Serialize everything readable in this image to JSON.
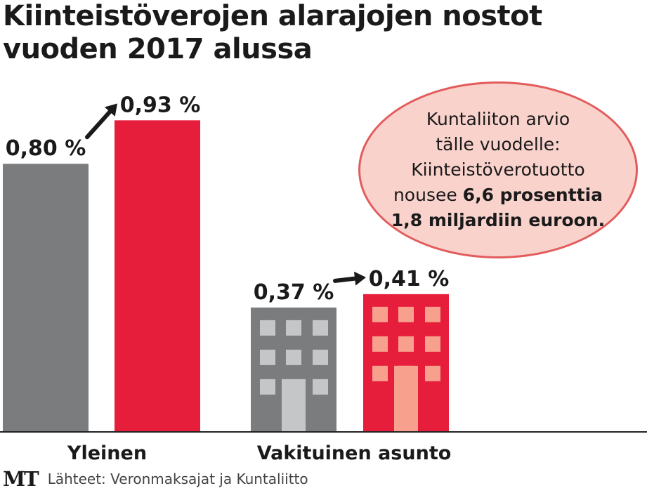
{
  "title_line1": "Kiinteistöverojen alarajojen nostot",
  "title_line2": "vuoden 2017 alussa",
  "colors": {
    "old": "#7b7c7e",
    "new": "#e61e3c",
    "window_old": "#c5c6c8",
    "window_new": "#f7a08e",
    "callout_fill": "#f9d2cc",
    "callout_border": "#e35c5c"
  },
  "chart_data": {
    "type": "bar",
    "title": "Kiinteistöverojen alarajojen nostot vuoden 2017 alussa",
    "categories": [
      "Yleinen",
      "Vakituinen asunto"
    ],
    "series": [
      {
        "name": "before",
        "values": [
          0.8,
          0.37
        ]
      },
      {
        "name": "after",
        "values": [
          0.93,
          0.41
        ]
      }
    ],
    "value_labels": [
      [
        "0,80 %",
        "0,93 %"
      ],
      [
        "0,37 %",
        "0,41 %"
      ]
    ],
    "unit": "%",
    "ylim": [
      0,
      1.0
    ]
  },
  "callout": {
    "line1": "Kuntaliiton arvio",
    "line2": "tälle vuodelle:",
    "line3": "Kiinteistöverotuotto",
    "line4_plain": "nousee ",
    "line4_bold": "6,6 prosenttia",
    "line5_bold": "1,8 miljardiin euroon."
  },
  "logo_text": "MT",
  "source": "Lähteet: Veronmaksajat ja Kuntaliitto"
}
